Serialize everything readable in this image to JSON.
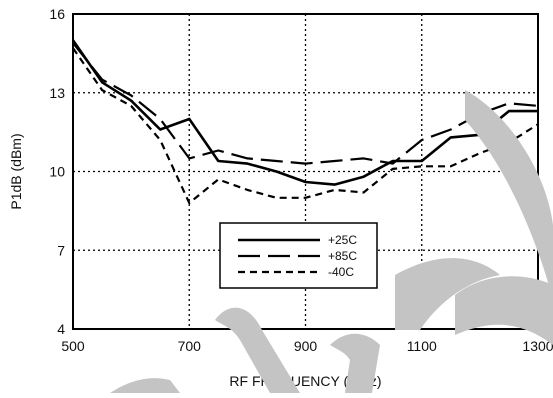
{
  "chart_data": {
    "type": "line",
    "xlabel": "RF FREQUENCY (MHz)",
    "ylabel": "P1dB (dBm)",
    "xlim": [
      500,
      1300
    ],
    "ylim": [
      4,
      16
    ],
    "x_ticks": [
      "500",
      "700",
      "900",
      "1100",
      "1300"
    ],
    "y_ticks": [
      "4",
      "7",
      "10",
      "13",
      "16"
    ],
    "grid": true,
    "legend_position": "center",
    "series": [
      {
        "name": "+25C",
        "style": "solid",
        "color": "#000000",
        "x": [
          500,
          550,
          600,
          650,
          700,
          750,
          800,
          850,
          900,
          950,
          1000,
          1050,
          1100,
          1150,
          1200,
          1250,
          1300
        ],
        "y": [
          15.0,
          13.4,
          12.7,
          11.6,
          12.0,
          10.4,
          10.3,
          10.0,
          9.6,
          9.5,
          9.8,
          10.4,
          10.4,
          11.3,
          11.4,
          12.3,
          12.3
        ]
      },
      {
        "name": "+85C",
        "style": "dash",
        "color": "#000000",
        "x": [
          500,
          550,
          600,
          650,
          700,
          750,
          800,
          850,
          900,
          950,
          1000,
          1050,
          1100,
          1150,
          1200,
          1250,
          1300
        ],
        "y": [
          14.9,
          13.5,
          12.9,
          12.0,
          10.5,
          10.8,
          10.5,
          10.4,
          10.3,
          10.4,
          10.5,
          10.3,
          11.2,
          11.6,
          12.2,
          12.6,
          12.5
        ]
      },
      {
        "name": "-40C",
        "style": "short-dash",
        "color": "#000000",
        "x": [
          500,
          550,
          600,
          650,
          700,
          750,
          800,
          850,
          900,
          950,
          1000,
          1050,
          1100,
          1150,
          1200,
          1250,
          1300
        ],
        "y": [
          14.7,
          13.1,
          12.5,
          11.2,
          8.8,
          9.7,
          9.3,
          9.0,
          9.0,
          9.3,
          9.2,
          10.1,
          10.2,
          10.2,
          10.7,
          11.1,
          11.8
        ]
      }
    ]
  }
}
